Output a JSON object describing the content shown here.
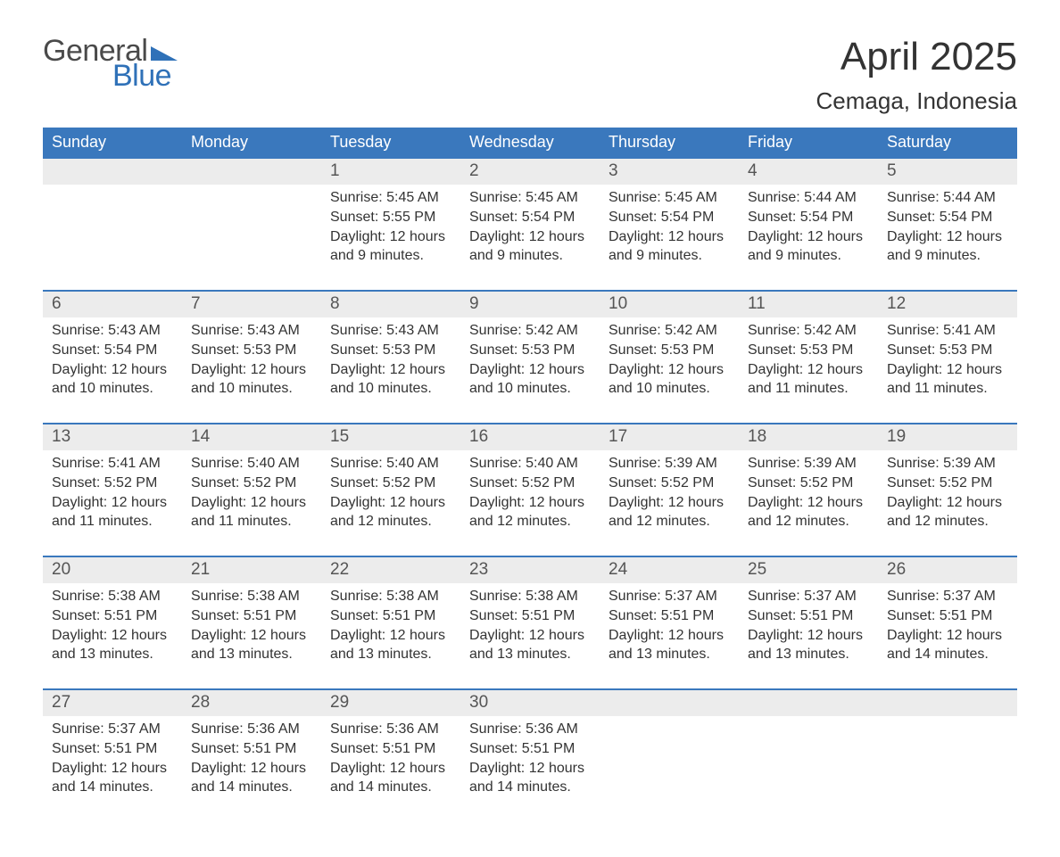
{
  "brand": {
    "word1": "General",
    "word2": "Blue",
    "logo_color": "#2f71b8"
  },
  "title": "April 2025",
  "location": "Cemaga, Indonesia",
  "colors": {
    "header_bg": "#3a78bd",
    "header_text": "#ffffff",
    "daynum_bg": "#ececec",
    "week_divider": "#3a78bd",
    "body_text": "#333333"
  },
  "weekdays": [
    "Sunday",
    "Monday",
    "Tuesday",
    "Wednesday",
    "Thursday",
    "Friday",
    "Saturday"
  ],
  "weeks": [
    [
      {
        "n": "",
        "sunrise": "",
        "sunset": "",
        "daylight": ""
      },
      {
        "n": "",
        "sunrise": "",
        "sunset": "",
        "daylight": ""
      },
      {
        "n": "1",
        "sunrise": "Sunrise: 5:45 AM",
        "sunset": "Sunset: 5:55 PM",
        "daylight": "Daylight: 12 hours and 9 minutes."
      },
      {
        "n": "2",
        "sunrise": "Sunrise: 5:45 AM",
        "sunset": "Sunset: 5:54 PM",
        "daylight": "Daylight: 12 hours and 9 minutes."
      },
      {
        "n": "3",
        "sunrise": "Sunrise: 5:45 AM",
        "sunset": "Sunset: 5:54 PM",
        "daylight": "Daylight: 12 hours and 9 minutes."
      },
      {
        "n": "4",
        "sunrise": "Sunrise: 5:44 AM",
        "sunset": "Sunset: 5:54 PM",
        "daylight": "Daylight: 12 hours and 9 minutes."
      },
      {
        "n": "5",
        "sunrise": "Sunrise: 5:44 AM",
        "sunset": "Sunset: 5:54 PM",
        "daylight": "Daylight: 12 hours and 9 minutes."
      }
    ],
    [
      {
        "n": "6",
        "sunrise": "Sunrise: 5:43 AM",
        "sunset": "Sunset: 5:54 PM",
        "daylight": "Daylight: 12 hours and 10 minutes."
      },
      {
        "n": "7",
        "sunrise": "Sunrise: 5:43 AM",
        "sunset": "Sunset: 5:53 PM",
        "daylight": "Daylight: 12 hours and 10 minutes."
      },
      {
        "n": "8",
        "sunrise": "Sunrise: 5:43 AM",
        "sunset": "Sunset: 5:53 PM",
        "daylight": "Daylight: 12 hours and 10 minutes."
      },
      {
        "n": "9",
        "sunrise": "Sunrise: 5:42 AM",
        "sunset": "Sunset: 5:53 PM",
        "daylight": "Daylight: 12 hours and 10 minutes."
      },
      {
        "n": "10",
        "sunrise": "Sunrise: 5:42 AM",
        "sunset": "Sunset: 5:53 PM",
        "daylight": "Daylight: 12 hours and 10 minutes."
      },
      {
        "n": "11",
        "sunrise": "Sunrise: 5:42 AM",
        "sunset": "Sunset: 5:53 PM",
        "daylight": "Daylight: 12 hours and 11 minutes."
      },
      {
        "n": "12",
        "sunrise": "Sunrise: 5:41 AM",
        "sunset": "Sunset: 5:53 PM",
        "daylight": "Daylight: 12 hours and 11 minutes."
      }
    ],
    [
      {
        "n": "13",
        "sunrise": "Sunrise: 5:41 AM",
        "sunset": "Sunset: 5:52 PM",
        "daylight": "Daylight: 12 hours and 11 minutes."
      },
      {
        "n": "14",
        "sunrise": "Sunrise: 5:40 AM",
        "sunset": "Sunset: 5:52 PM",
        "daylight": "Daylight: 12 hours and 11 minutes."
      },
      {
        "n": "15",
        "sunrise": "Sunrise: 5:40 AM",
        "sunset": "Sunset: 5:52 PM",
        "daylight": "Daylight: 12 hours and 12 minutes."
      },
      {
        "n": "16",
        "sunrise": "Sunrise: 5:40 AM",
        "sunset": "Sunset: 5:52 PM",
        "daylight": "Daylight: 12 hours and 12 minutes."
      },
      {
        "n": "17",
        "sunrise": "Sunrise: 5:39 AM",
        "sunset": "Sunset: 5:52 PM",
        "daylight": "Daylight: 12 hours and 12 minutes."
      },
      {
        "n": "18",
        "sunrise": "Sunrise: 5:39 AM",
        "sunset": "Sunset: 5:52 PM",
        "daylight": "Daylight: 12 hours and 12 minutes."
      },
      {
        "n": "19",
        "sunrise": "Sunrise: 5:39 AM",
        "sunset": "Sunset: 5:52 PM",
        "daylight": "Daylight: 12 hours and 12 minutes."
      }
    ],
    [
      {
        "n": "20",
        "sunrise": "Sunrise: 5:38 AM",
        "sunset": "Sunset: 5:51 PM",
        "daylight": "Daylight: 12 hours and 13 minutes."
      },
      {
        "n": "21",
        "sunrise": "Sunrise: 5:38 AM",
        "sunset": "Sunset: 5:51 PM",
        "daylight": "Daylight: 12 hours and 13 minutes."
      },
      {
        "n": "22",
        "sunrise": "Sunrise: 5:38 AM",
        "sunset": "Sunset: 5:51 PM",
        "daylight": "Daylight: 12 hours and 13 minutes."
      },
      {
        "n": "23",
        "sunrise": "Sunrise: 5:38 AM",
        "sunset": "Sunset: 5:51 PM",
        "daylight": "Daylight: 12 hours and 13 minutes."
      },
      {
        "n": "24",
        "sunrise": "Sunrise: 5:37 AM",
        "sunset": "Sunset: 5:51 PM",
        "daylight": "Daylight: 12 hours and 13 minutes."
      },
      {
        "n": "25",
        "sunrise": "Sunrise: 5:37 AM",
        "sunset": "Sunset: 5:51 PM",
        "daylight": "Daylight: 12 hours and 13 minutes."
      },
      {
        "n": "26",
        "sunrise": "Sunrise: 5:37 AM",
        "sunset": "Sunset: 5:51 PM",
        "daylight": "Daylight: 12 hours and 14 minutes."
      }
    ],
    [
      {
        "n": "27",
        "sunrise": "Sunrise: 5:37 AM",
        "sunset": "Sunset: 5:51 PM",
        "daylight": "Daylight: 12 hours and 14 minutes."
      },
      {
        "n": "28",
        "sunrise": "Sunrise: 5:36 AM",
        "sunset": "Sunset: 5:51 PM",
        "daylight": "Daylight: 12 hours and 14 minutes."
      },
      {
        "n": "29",
        "sunrise": "Sunrise: 5:36 AM",
        "sunset": "Sunset: 5:51 PM",
        "daylight": "Daylight: 12 hours and 14 minutes."
      },
      {
        "n": "30",
        "sunrise": "Sunrise: 5:36 AM",
        "sunset": "Sunset: 5:51 PM",
        "daylight": "Daylight: 12 hours and 14 minutes."
      },
      {
        "n": "",
        "sunrise": "",
        "sunset": "",
        "daylight": ""
      },
      {
        "n": "",
        "sunrise": "",
        "sunset": "",
        "daylight": ""
      },
      {
        "n": "",
        "sunrise": "",
        "sunset": "",
        "daylight": ""
      }
    ]
  ]
}
